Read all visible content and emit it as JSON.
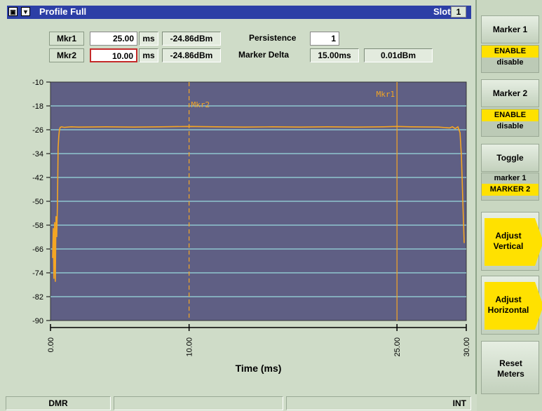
{
  "window": {
    "title": "Profile Full",
    "slot_label": "Slot",
    "slot_value": "1"
  },
  "markers": {
    "mkr1_label": "Mkr1",
    "mkr1_time": "25.00",
    "mkr1_unit": "ms",
    "mkr1_level": "-24.86dBm",
    "mkr2_label": "Mkr2",
    "mkr2_time": "10.00",
    "mkr2_unit": "ms",
    "mkr2_level": "-24.86dBm",
    "persistence_label": "Persistence",
    "persistence_value": "1",
    "delta_label": "Marker Delta",
    "delta_time": "15.00ms",
    "delta_level": "0.01dBm"
  },
  "softkeys": {
    "marker1_title": "Marker 1",
    "marker1_enable": "ENABLE",
    "marker1_disable": "disable",
    "marker2_title": "Marker 2",
    "marker2_enable": "ENABLE",
    "marker2_disable": "disable",
    "toggle_title": "Toggle",
    "toggle_m1": "marker 1",
    "toggle_m2": "MARKER 2",
    "adjust_vertical_1": "Adjust",
    "adjust_vertical_2": "Vertical",
    "adjust_horizontal_1": "Adjust",
    "adjust_horizontal_2": "Horizontal",
    "reset_1": "Reset",
    "reset_2": "Meters"
  },
  "status": {
    "mode": "DMR",
    "ref": "INT"
  },
  "colors": {
    "plot_bg": "#5f5f84",
    "grid": "#8fc6cf",
    "trace": "#f5a623",
    "title_bar": "#2c3fa6",
    "highlight": "#ffe100"
  },
  "chart_data": {
    "type": "line",
    "xlabel": "Time (ms)",
    "ylabel": "",
    "xlim": [
      0,
      30
    ],
    "ylim": [
      -90,
      -10
    ],
    "y_ticks": [
      -10,
      -18,
      -26,
      -34,
      -42,
      -50,
      -58,
      -66,
      -74,
      -82,
      -90
    ],
    "x_ticks": [
      0,
      10,
      25,
      30
    ],
    "x_tick_labels": [
      "0.00",
      "10.00",
      "25.00",
      "30.00"
    ],
    "grid": true,
    "markers": [
      {
        "name": "Mkr1",
        "x": 25.0,
        "style": "solid"
      },
      {
        "name": "Mkr2",
        "x": 10.0,
        "style": "dashed"
      }
    ],
    "series": [
      {
        "x": [
          0.15,
          0.2,
          0.25,
          0.3,
          0.35,
          0.4,
          0.45,
          0.5,
          0.55,
          0.6,
          0.65,
          0.7,
          0.8,
          1.0,
          1.5,
          2,
          4,
          6,
          8,
          10,
          12,
          14,
          16,
          18,
          20,
          22,
          24,
          25,
          26,
          28,
          28.8,
          29.0,
          29.2,
          29.4,
          29.55,
          29.65,
          29.75,
          29.85
        ],
        "y": [
          -69,
          -59,
          -76,
          -57,
          -77,
          -55,
          -62,
          -51,
          -32,
          -28,
          -26,
          -25.2,
          -25,
          -25.2,
          -25,
          -25.1,
          -25,
          -25.1,
          -25,
          -24.9,
          -25,
          -25.1,
          -25,
          -25.1,
          -25,
          -25.1,
          -25,
          -24.9,
          -25,
          -25.1,
          -25.4,
          -25,
          -25.6,
          -25,
          -27,
          -35,
          -50,
          -64
        ]
      }
    ]
  }
}
